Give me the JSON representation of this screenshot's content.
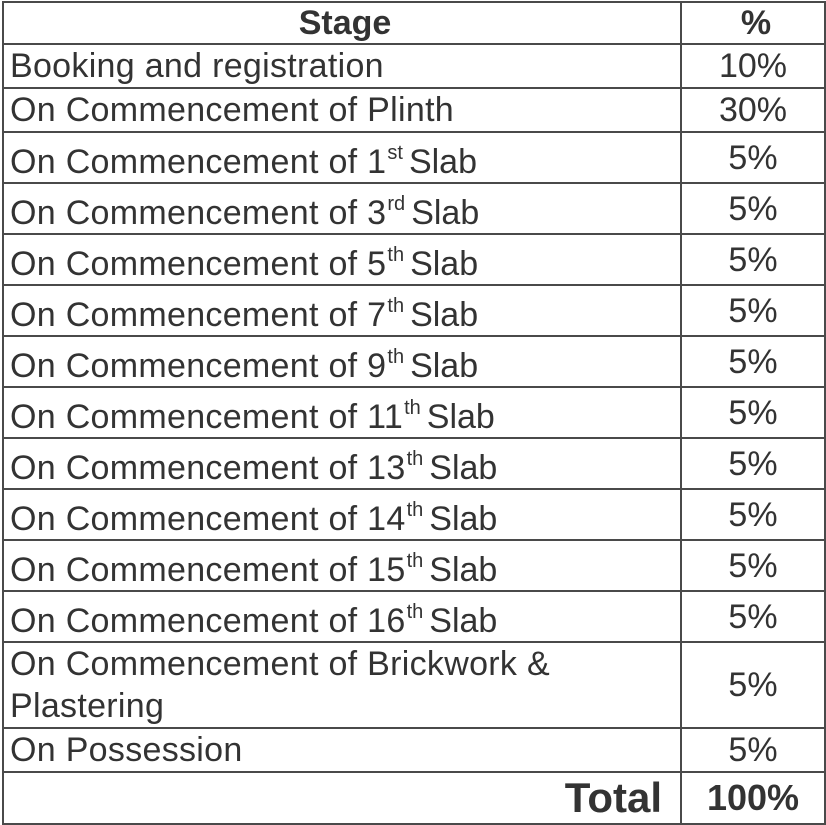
{
  "table": {
    "header": {
      "stage": "Stage",
      "percent": "%"
    },
    "rows": [
      {
        "base": "Booking and registration",
        "ordinal": "",
        "tail": "",
        "percent": "10%"
      },
      {
        "base": "On Commencement of Plinth",
        "ordinal": "",
        "tail": "",
        "percent": "30%"
      },
      {
        "base": "On Commencement of 1",
        "ordinal": "st",
        "tail": "Slab",
        "percent": "5%"
      },
      {
        "base": "On Commencement of 3",
        "ordinal": "rd",
        "tail": "Slab",
        "percent": "5%"
      },
      {
        "base": "On Commencement of 5",
        "ordinal": "th",
        "tail": "Slab",
        "percent": "5%"
      },
      {
        "base": "On Commencement of 7",
        "ordinal": "th",
        "tail": "Slab",
        "percent": "5%"
      },
      {
        "base": "On Commencement of 9",
        "ordinal": "th",
        "tail": "Slab",
        "percent": "5%"
      },
      {
        "base": "On Commencement of 11",
        "ordinal": "th",
        "tail": "Slab",
        "percent": "5%"
      },
      {
        "base": "On Commencement of 13",
        "ordinal": "th",
        "tail": "Slab",
        "percent": "5%"
      },
      {
        "base": "On Commencement of 14",
        "ordinal": "th",
        "tail": "Slab",
        "percent": "5%"
      },
      {
        "base": "On Commencement of 15",
        "ordinal": "th",
        "tail": "Slab",
        "percent": "5%"
      },
      {
        "base": "On Commencement of 16",
        "ordinal": "th",
        "tail": "Slab",
        "percent": "5%"
      },
      {
        "base": "On Commencement of Brickwork & Plastering",
        "ordinal": "",
        "tail": "",
        "percent": "5%"
      },
      {
        "base": "On Possession",
        "ordinal": "",
        "tail": "",
        "percent": "5%"
      }
    ],
    "total": {
      "label": "Total",
      "percent": "100%"
    }
  }
}
